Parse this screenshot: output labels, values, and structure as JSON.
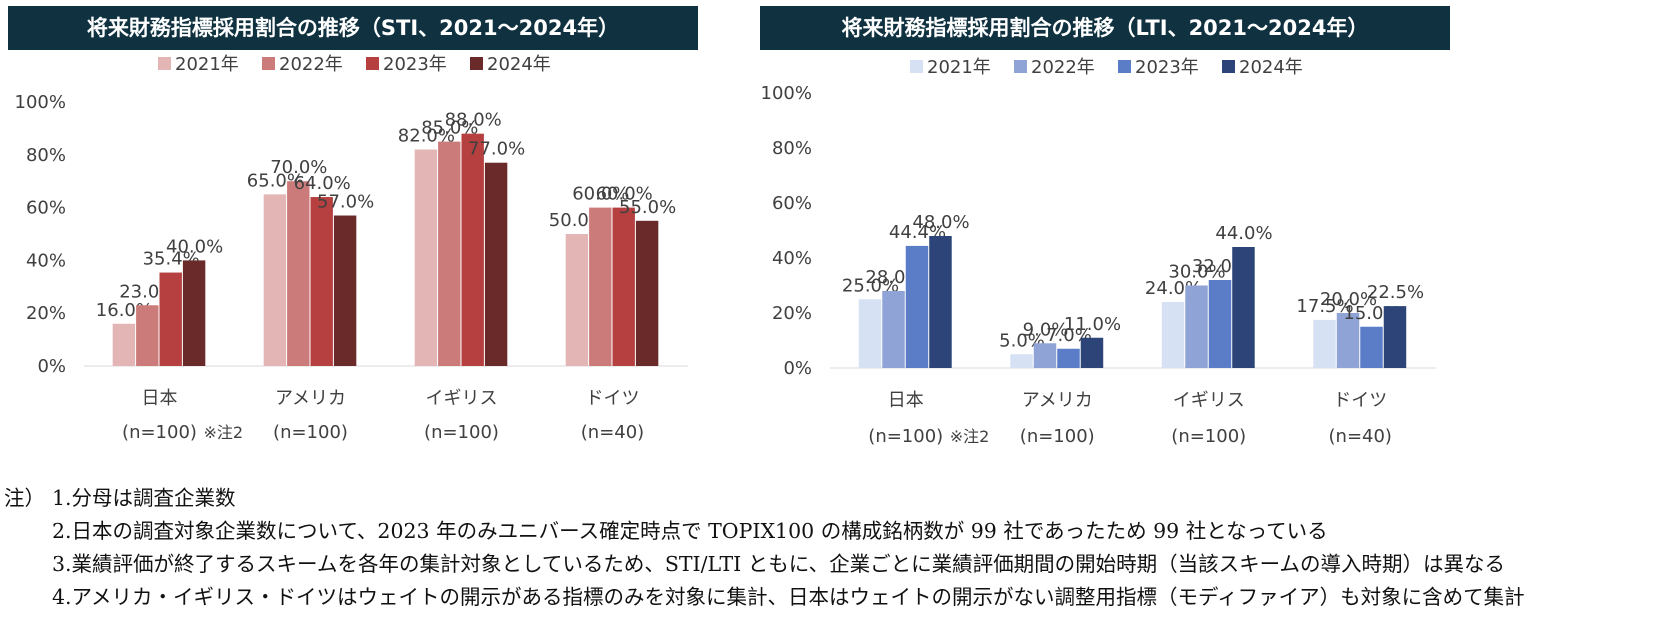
{
  "chart_data": [
    {
      "type": "bar",
      "title": "将来財務指標採用割合の推移（STI、2021～2024年）",
      "categories": [
        "日本",
        "アメリカ",
        "イギリス",
        "ドイツ"
      ],
      "category_notes": [
        "(n=100)",
        "(n=100)",
        "(n=100)",
        "(n=40)"
      ],
      "category_footnotes": [
        "※注2",
        "",
        "",
        ""
      ],
      "series": [
        {
          "name": "2021年",
          "values": [
            16.0,
            65.0,
            82.0,
            50.0
          ],
          "labels": [
            "16.0%",
            "65.0%",
            "82.0%",
            "50.0%"
          ]
        },
        {
          "name": "2022年",
          "values": [
            23.0,
            70.0,
            85.0,
            60.0
          ],
          "labels": [
            "23.0%",
            "70.0%",
            "85.0%",
            "60.0%"
          ]
        },
        {
          "name": "2023年",
          "values": [
            35.4,
            64.0,
            88.0,
            60.0
          ],
          "labels": [
            "35.4%",
            "64.0%",
            "88.0%",
            "60.0%"
          ]
        },
        {
          "name": "2024年",
          "values": [
            40.0,
            57.0,
            77.0,
            55.0
          ],
          "labels": [
            "40.0%",
            "57.0%",
            "77.0%",
            "55.0%"
          ]
        }
      ],
      "colors": [
        "#e3b5b5",
        "#cc7b7b",
        "#b5403f",
        "#6a2a2a"
      ],
      "yticks": [
        "0%",
        "20%",
        "40%",
        "60%",
        "80%",
        "100%"
      ],
      "ylim": [
        0,
        100
      ],
      "legend": "top-center"
    },
    {
      "type": "bar",
      "title": "将来財務指標採用割合の推移（LTI、2021～2024年）",
      "categories": [
        "日本",
        "アメリカ",
        "イギリス",
        "ドイツ"
      ],
      "category_notes": [
        "(n=100)",
        "(n=100)",
        "(n=100)",
        "(n=40)"
      ],
      "category_footnotes": [
        "※注2",
        "",
        "",
        ""
      ],
      "series": [
        {
          "name": "2021年",
          "values": [
            25.0,
            5.0,
            24.0,
            17.5
          ],
          "labels": [
            "25.0%",
            "5.0%",
            "24.0%",
            "17.5%"
          ]
        },
        {
          "name": "2022年",
          "values": [
            28.0,
            9.0,
            30.0,
            20.0
          ],
          "labels": [
            "28.0%",
            "9.0%",
            "30.0%",
            "20.0%"
          ]
        },
        {
          "name": "2023年",
          "values": [
            44.4,
            7.0,
            32.0,
            15.0
          ],
          "labels": [
            "44.4%",
            "7.0%",
            "32.0%",
            "15.0%"
          ]
        },
        {
          "name": "2024年",
          "values": [
            48.0,
            11.0,
            44.0,
            22.5
          ],
          "labels": [
            "48.0%",
            "11.0%",
            "44.0%",
            "22.5%"
          ]
        }
      ],
      "colors": [
        "#d6e1f3",
        "#8fa3d6",
        "#5b7dc7",
        "#2c4478"
      ],
      "yticks": [
        "0%",
        "20%",
        "40%",
        "60%",
        "80%",
        "100%"
      ],
      "ylim": [
        0,
        100
      ],
      "legend": "top-center"
    }
  ],
  "notes": {
    "prefix": "注）",
    "lines": [
      "1.分母は調査企業数",
      "2.日本の調査対象企業数について、2023 年のみユニバース確定時点で TOPIX100 の構成銘柄数が 99 社であったため 99 社となっている",
      "3.業績評価が終了するスキームを各年の集計対象としているため、STI/LTI ともに、企業ごとに業績評価期間の開始時期（当該スキームの導入時期）は異なる",
      "4.アメリカ・イギリス・ドイツはウェイトの開示がある指標のみを対象に集計、日本はウェイトの開示がない調整用指標（モディファイア）も対象に含めて集計"
    ]
  }
}
